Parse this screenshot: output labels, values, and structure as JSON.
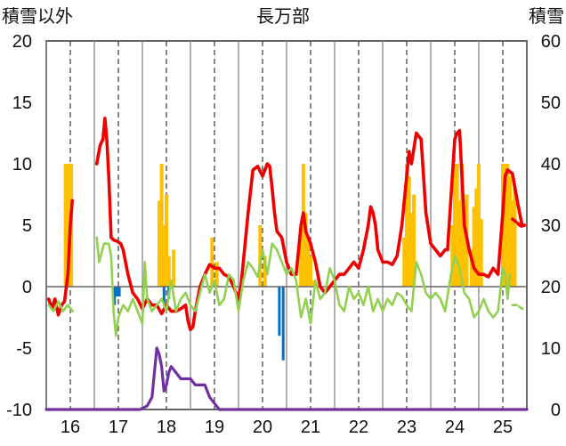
{
  "chart_data": {
    "type": "line",
    "title": "長万部",
    "ylabel_left": "積雪以外",
    "ylabel_right": "積雪",
    "ylim_left": [
      -10,
      20
    ],
    "ylim_right": [
      0,
      60
    ],
    "yticks_left": [
      20,
      15,
      10,
      5,
      0,
      -5,
      -10
    ],
    "yticks_right": [
      60,
      50,
      40,
      30,
      20,
      10,
      0
    ],
    "xlim": [
      15.5,
      25.5
    ],
    "xticks": [
      16,
      17,
      18,
      19,
      20,
      21,
      22,
      23,
      24,
      25
    ],
    "xtick_labels": [
      "16",
      "17",
      "18",
      "19",
      "20",
      "21",
      "22",
      "23",
      "24",
      "25"
    ],
    "grid": {
      "solid_vertical_at": [
        15.5,
        16.5,
        17.5,
        18.5,
        19.5,
        20.5,
        21.5,
        22.5,
        23.5,
        24.5
      ],
      "dashed_vertical_at": [
        16,
        17,
        18,
        19,
        20,
        21,
        22,
        23,
        24,
        25
      ],
      "zero_line": true
    },
    "colors": {
      "red": "#ee0000",
      "lightgreen": "#92d050",
      "orange": "#ffc000",
      "blue": "#0070c0",
      "purple": "#7030a0"
    },
    "series": [
      {
        "color": "#ee0000",
        "axis": "left",
        "x": [
          15.55,
          15.62,
          15.68,
          15.75,
          15.82,
          15.88,
          15.95,
          16.0,
          16.04,
          16.1,
          16.15,
          16.25,
          16.3,
          16.4,
          16.45,
          16.5,
          16.55,
          16.62,
          16.68,
          16.72,
          16.76,
          16.8,
          16.85,
          16.9,
          16.97,
          17.05,
          17.1,
          17.15,
          17.2,
          17.3,
          17.4,
          17.5,
          17.6,
          17.7,
          17.8,
          17.9,
          18.0,
          18.1,
          18.2,
          18.3,
          18.4,
          18.45,
          18.5,
          18.55,
          18.6,
          18.7,
          18.8,
          18.9,
          19.0,
          19.1,
          19.2,
          19.3,
          19.4,
          19.5,
          19.55,
          19.6,
          19.65,
          19.7,
          19.8,
          19.9,
          20.0,
          20.1,
          20.15,
          20.2,
          20.25,
          20.3,
          20.4,
          20.5,
          20.6,
          20.7,
          20.8,
          20.85,
          20.9,
          21.0,
          21.1,
          21.2,
          21.3,
          21.4,
          21.5,
          21.6,
          21.7,
          21.8,
          21.9,
          22.0,
          22.1,
          22.2,
          22.25,
          22.3,
          22.35,
          22.4,
          22.5,
          22.6,
          22.7,
          22.8,
          22.9,
          23.0,
          23.05,
          23.1,
          23.2,
          23.3,
          23.4,
          23.5,
          23.6,
          23.7,
          23.8,
          23.85,
          23.9,
          24.0,
          24.05,
          24.1,
          24.15,
          24.2,
          24.3,
          24.4,
          24.5,
          24.6,
          24.7,
          24.8,
          24.9,
          25.0,
          25.05,
          25.1,
          25.2,
          25.3,
          25.4,
          25.45
        ],
        "y": [
          -1.0,
          -1.8,
          -1.0,
          -2.3,
          -1.5,
          -1.2,
          1.0,
          5.0,
          7.0,
          null,
          null,
          null,
          null,
          null,
          null,
          null,
          10.0,
          11.5,
          12.0,
          13.7,
          12.0,
          9.0,
          4.0,
          3.8,
          3.7,
          3.5,
          3.0,
          2.0,
          1.0,
          -0.5,
          -1.0,
          -1.8,
          -1.0,
          -1.5,
          -1.5,
          -2.2,
          -1.5,
          -2.0,
          -2.0,
          -1.8,
          -1.5,
          -2.8,
          -3.5,
          -3.3,
          -2.0,
          0.0,
          1.0,
          1.8,
          1.5,
          1.5,
          1.0,
          0.8,
          0.0,
          -1.0,
          0.0,
          2.0,
          4.0,
          6.0,
          9.5,
          9.8,
          9.0,
          10.0,
          9.8,
          8.0,
          6.0,
          4.5,
          4.0,
          2.0,
          1.0,
          1.0,
          5.0,
          6.0,
          4.5,
          3.5,
          2.0,
          0.0,
          -0.5,
          0.0,
          0.5,
          1.0,
          1.0,
          1.5,
          2.0,
          1.5,
          3.0,
          5.0,
          6.5,
          6.0,
          5.0,
          3.0,
          2.0,
          2.0,
          1.8,
          2.5,
          5.0,
          9.0,
          11.0,
          10.0,
          12.5,
          12.0,
          6.0,
          3.5,
          3.0,
          2.5,
          3.0,
          3.0,
          6.0,
          12.0,
          12.5,
          12.7,
          9.0,
          5.0,
          3.0,
          1.5,
          1.0,
          1.0,
          0.8,
          1.5,
          1.0,
          6.0,
          9.0,
          9.5,
          9.2,
          7.0,
          5.0,
          5.0
        ]
      },
      {
        "color": "#92d050",
        "axis": "left",
        "x": [
          15.55,
          15.65,
          15.75,
          15.85,
          15.95,
          16.05,
          16.5,
          16.55,
          16.6,
          16.7,
          16.8,
          16.85,
          16.9,
          16.95,
          17.0,
          17.1,
          17.2,
          17.3,
          17.4,
          17.5,
          17.55,
          17.6,
          17.7,
          17.8,
          17.9,
          18.0,
          18.1,
          18.2,
          18.3,
          18.4,
          18.5,
          18.6,
          18.7,
          18.8,
          18.9,
          19.0,
          19.1,
          19.2,
          19.3,
          19.4,
          19.5,
          19.6,
          19.7,
          19.8,
          19.9,
          20.0,
          20.1,
          20.2,
          20.3,
          20.4,
          20.5,
          20.6,
          20.7,
          20.8,
          20.9,
          21.0,
          21.1,
          21.2,
          21.3,
          21.4,
          21.5,
          21.6,
          21.7,
          21.8,
          21.9,
          22.0,
          22.1,
          22.2,
          22.3,
          22.4,
          22.5,
          22.6,
          22.7,
          22.8,
          22.9,
          23.0,
          23.1,
          23.2,
          23.3,
          23.4,
          23.5,
          23.6,
          23.7,
          23.8,
          23.9,
          24.0,
          24.1,
          24.2,
          24.3,
          24.4,
          24.5,
          24.6,
          24.7,
          24.8,
          24.9,
          25.0,
          25.05,
          25.1,
          25.15
        ],
        "y": [
          -1.5,
          -2.0,
          -1.2,
          -2.0,
          -1.5,
          -2.0,
          null,
          4.0,
          2.0,
          3.5,
          3.5,
          2.5,
          -2.0,
          -4.0,
          -2.5,
          -1.5,
          -2.0,
          -1.0,
          -2.0,
          -3.0,
          2.0,
          -1.0,
          -2.0,
          -1.5,
          -1.0,
          -2.0,
          0.5,
          -2.0,
          -1.0,
          -0.5,
          -1.5,
          -2.0,
          -0.5,
          1.0,
          -0.5,
          0.5,
          -1.5,
          -1.0,
          1.0,
          0.5,
          -2.0,
          0.5,
          2.0,
          1.5,
          0.8,
          3.0,
          1.0,
          3.5,
          3.0,
          2.0,
          1.0,
          1.5,
          0.5,
          -2.5,
          -1.0,
          -3.0,
          0.5,
          -1.0,
          -0.5,
          1.5,
          0.5,
          -1.5,
          -2.0,
          0.0,
          -1.0,
          -0.5,
          -1.5,
          0.0,
          -2.0,
          -1.0,
          -2.0,
          -1.0,
          -1.5,
          -0.5,
          -0.8,
          -1.5,
          -2.0,
          2.0,
          1.0,
          -0.5,
          -1.0,
          -0.5,
          -1.0,
          -2.0,
          0.5,
          2.5,
          1.5,
          -0.5,
          -1.0,
          -2.5,
          -2.0,
          -1.0,
          -2.0,
          -2.5,
          -2.0,
          1.5,
          1.0,
          -1.0,
          1.0
        ]
      },
      {
        "color": "#ee0000",
        "axis": "left",
        "style": "dashed-tail",
        "x": [
          25.2,
          25.3,
          25.35,
          25.4,
          25.45
        ],
        "y": [
          5.5,
          5.2,
          5.0,
          4.9,
          5.0
        ]
      },
      {
        "color": "#92d050",
        "axis": "left",
        "style": "dashed-tail",
        "x": [
          25.2,
          25.3,
          25.4,
          25.45
        ],
        "y": [
          -1.5,
          -1.5,
          -1.8,
          -1.8
        ]
      },
      {
        "color": "#7030a0",
        "axis": "left",
        "x": [
          15.5,
          17.45,
          17.6,
          17.7,
          17.75,
          17.8,
          17.85,
          17.9,
          17.95,
          18.0,
          18.05,
          18.1,
          18.2,
          18.3,
          18.4,
          18.5,
          18.6,
          18.7,
          18.8,
          18.9,
          19.0,
          19.1,
          25.5
        ],
        "y": [
          -10.0,
          -10.0,
          -9.7,
          -9.0,
          -7.0,
          -5.0,
          -5.5,
          -6.5,
          -8.5,
          -8.0,
          -7.0,
          -6.5,
          -7.0,
          -7.5,
          -7.5,
          -7.5,
          -8.0,
          -8.0,
          -8.0,
          -9.0,
          -9.5,
          -10.0,
          -10.0
        ]
      }
    ],
    "snow_bars": {
      "color": "#ffc000",
      "axis": "right",
      "x": [
        15.9,
        15.96,
        16.02,
        17.85,
        17.9,
        17.95,
        18.0,
        18.05,
        18.1,
        18.15,
        18.95,
        19.05,
        19.95,
        20.05,
        20.8,
        20.85,
        20.9,
        20.95,
        21.0,
        21.05,
        23.95,
        24.0,
        24.05,
        24.1,
        24.15,
        24.2,
        24.25,
        24.35,
        24.4,
        24.45,
        24.5,
        24.55,
        25.0,
        25.05,
        25.1,
        25.15,
        25.2,
        25.25
      ],
      "values": [
        40,
        40,
        40,
        34,
        40,
        30,
        35,
        25,
        20,
        26,
        28,
        24,
        30,
        25,
        28,
        40,
        32,
        28,
        25,
        21,
        30,
        40,
        40,
        34,
        40,
        30,
        35,
        26,
        33,
        36,
        40,
        31,
        40,
        40,
        40,
        38,
        34,
        36
      ]
    },
    "neg_bars": {
      "color": "#0070c0",
      "axis": "left",
      "x": [
        16.92,
        16.97,
        17.02,
        17.95,
        18.05,
        20.35,
        20.43
      ],
      "values": [
        -1.5,
        -0.8,
        -0.8,
        -1.5,
        -1.0,
        -4.0,
        -6.0
      ]
    },
    "extra_orange_bars": {
      "x": [
        22.95,
        23.0,
        23.05,
        23.1,
        23.15
      ],
      "values": [
        28,
        40,
        38,
        32,
        35
      ]
    }
  }
}
